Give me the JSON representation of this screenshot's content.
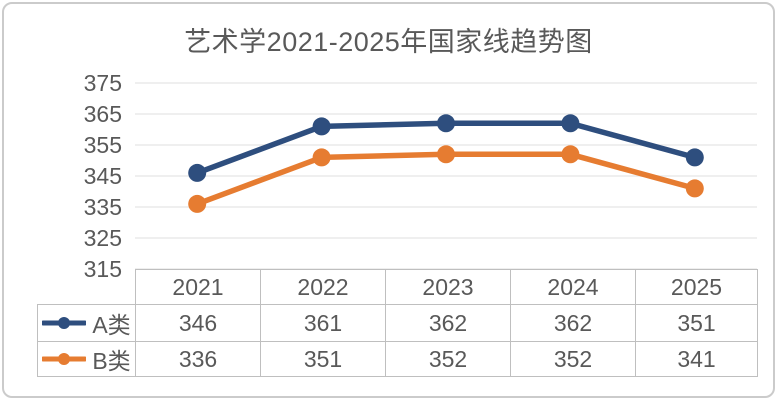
{
  "chart_data": {
    "type": "line",
    "title": "艺术学2021-2025年国家线趋势图",
    "categories": [
      "2021",
      "2022",
      "2023",
      "2024",
      "2025"
    ],
    "series": [
      {
        "name": "A类",
        "values": [
          346,
          361,
          362,
          362,
          351
        ],
        "color": "#2E4E7E"
      },
      {
        "name": "B类",
        "values": [
          336,
          351,
          352,
          352,
          341
        ],
        "color": "#E67C31"
      }
    ],
    "xlabel": "",
    "ylabel": "",
    "ylim": [
      315,
      375
    ],
    "yticks": [
      315,
      325,
      335,
      345,
      355,
      365,
      375
    ],
    "grid": true,
    "marker": "circle",
    "data_table": true,
    "legend_position": "data-table-left"
  },
  "colors": {
    "series_a": "#2E4E7E",
    "series_b": "#E67C31",
    "gridline": "#efefef",
    "table_border": "#bfbfbf",
    "text": "#595959",
    "figure_border": "#cbcbcb"
  }
}
